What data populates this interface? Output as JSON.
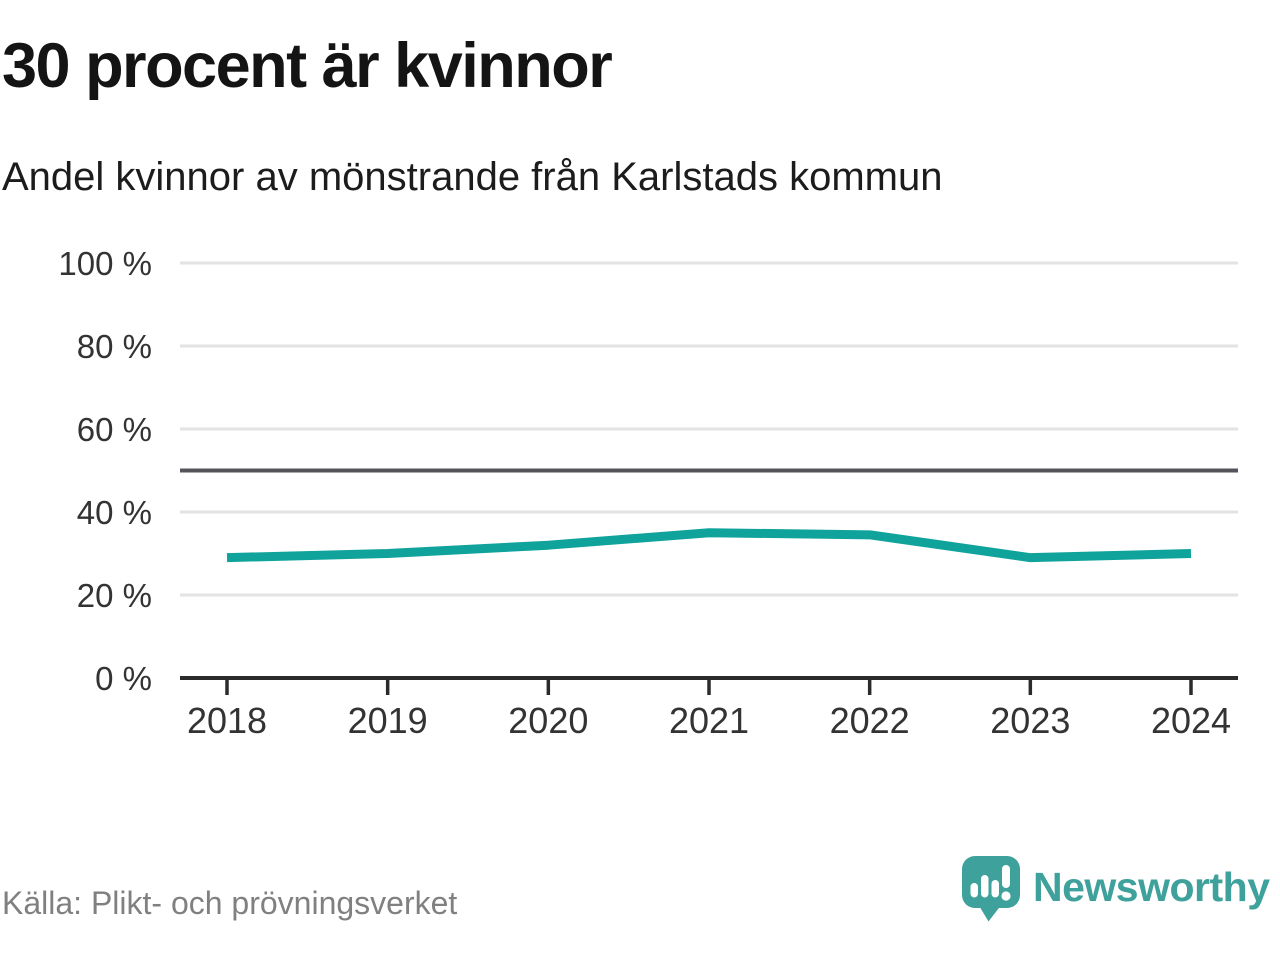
{
  "header": {
    "title": "30 procent är kvinnor",
    "subtitle": "Andel kvinnor av mönstrande från Karlstads kommun"
  },
  "footer": {
    "source": "Källa: Plikt- och prövningsverket",
    "brand": "Newsworthy"
  },
  "colors": {
    "line": "#10a39c",
    "brand_teal": "#3fa19b",
    "grid": "#e3e3e3",
    "reference_line": "#54545a",
    "axis": "#2b2b2b",
    "tick_label": "#333333",
    "source_text": "#808080"
  },
  "chart_data": {
    "type": "line",
    "title": "30 procent är kvinnor",
    "subtitle": "Andel kvinnor av mönstrande från Karlstads kommun",
    "source": "Källa: Plikt- och prövningsverket",
    "x": [
      2018,
      2019,
      2020,
      2021,
      2022,
      2023,
      2024
    ],
    "series": [
      {
        "name": "Andel kvinnor av mönstrande",
        "values": [
          29,
          30,
          32,
          35,
          34.5,
          29,
          30
        ]
      }
    ],
    "unit": "%",
    "ylim": [
      0,
      100
    ],
    "yticks": [
      0,
      20,
      40,
      60,
      80,
      100
    ],
    "ytick_suffix": " %",
    "reference_line": 50,
    "grid": "horizontal",
    "legend": "none",
    "markers": "none"
  }
}
